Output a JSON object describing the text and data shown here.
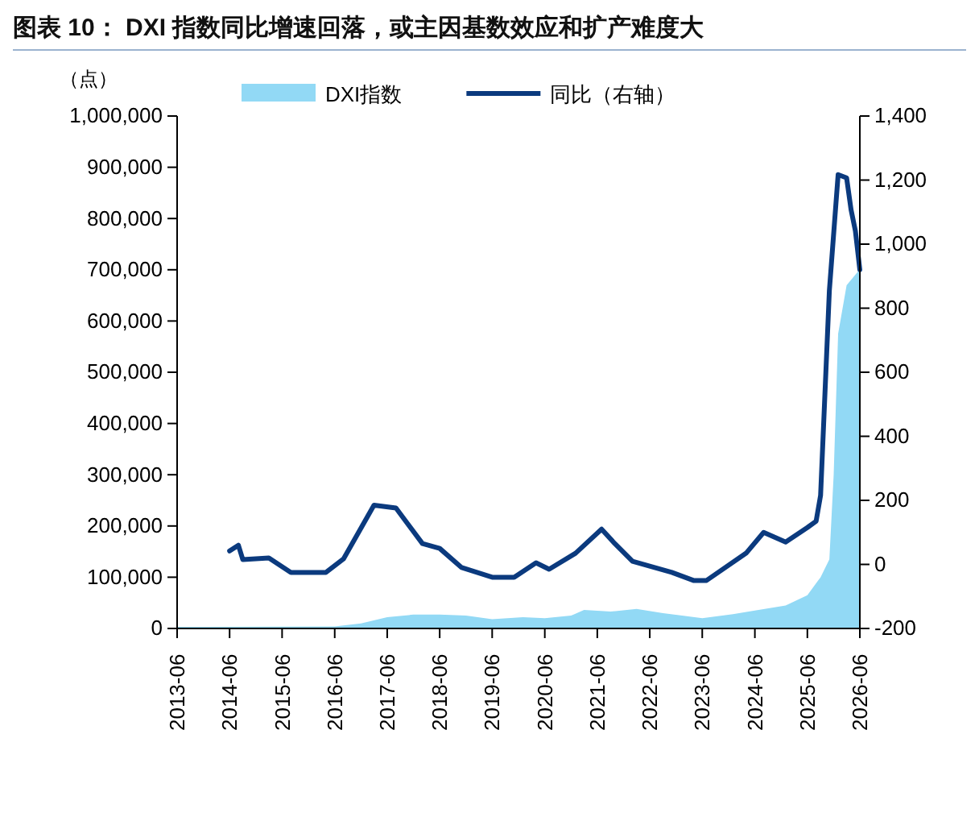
{
  "chart_data": {
    "type": "area",
    "title": "图表 10：  DXI 指数同比增速回落，或主因基数效应和扩产难度大",
    "ylabel": "（点）",
    "legend": "top",
    "xlim": [
      "2013-06",
      "2026-06"
    ],
    "xticks": [
      {
        "value": "2013-06",
        "label": "2013-06"
      },
      {
        "value": "2014-06",
        "label": "2014-06"
      },
      {
        "value": "2015-06",
        "label": "2015-06"
      },
      {
        "value": "2016-06",
        "label": "2016-06"
      },
      {
        "value": "2017-06",
        "label": "2017-06"
      },
      {
        "value": "2018-06",
        "label": "2018-06"
      },
      {
        "value": "2019-06",
        "label": "2019-06"
      },
      {
        "value": "2020-06",
        "label": "2020-06"
      },
      {
        "value": "2021-06",
        "label": "2021-06"
      },
      {
        "value": "2022-06",
        "label": "2022-06"
      },
      {
        "value": "2023-06",
        "label": "2023-06"
      },
      {
        "value": "2024-06",
        "label": "2024-06"
      },
      {
        "value": "2025-06",
        "label": "2025-06"
      },
      {
        "value": "2026-06",
        "label": "2026-06"
      }
    ],
    "ylim": [
      0,
      1000000
    ],
    "yticks": [
      {
        "value": 0,
        "label": "0"
      },
      {
        "value": 100000,
        "label": "100,000"
      },
      {
        "value": 200000,
        "label": "200,000"
      },
      {
        "value": 300000,
        "label": "300,000"
      },
      {
        "value": 400000,
        "label": "400,000"
      },
      {
        "value": 500000,
        "label": "500,000"
      },
      {
        "value": 600000,
        "label": "600,000"
      },
      {
        "value": 700000,
        "label": "700,000"
      },
      {
        "value": 800000,
        "label": "800,000"
      },
      {
        "value": 900000,
        "label": "900,000"
      },
      {
        "value": 1000000,
        "label": "1,000,000"
      }
    ],
    "y2lim": [
      -200,
      1400
    ],
    "y2ticks": [
      -200,
      0,
      200,
      400,
      600,
      800,
      {
        "value": 1000,
        "label": "1,000"
      },
      {
        "value": 1200,
        "label": "1,200"
      },
      {
        "value": 1400,
        "label": "1,400"
      }
    ],
    "series": [
      {
        "name": "DXI指数",
        "color": "#92d9f5",
        "x": [
          "2013-06",
          "2016-06",
          "2016-12",
          "2017-06",
          "2017-12",
          "2018-06",
          "2018-12",
          "2019-06",
          "2020-01",
          "2020-06",
          "2020-12",
          "2021-03",
          "2021-09",
          "2022-03",
          "2022-09",
          "2023-06",
          "2024-01",
          "2024-06",
          "2025-01",
          "2025-06",
          "2025-09",
          "2025-11",
          "2025-12",
          "2026-01",
          "2026-03",
          "2026-06"
        ],
        "values": [
          3000,
          4000,
          10000,
          22000,
          27000,
          27000,
          25000,
          18000,
          22000,
          20000,
          25000,
          36000,
          33000,
          38000,
          30000,
          20000,
          28000,
          35000,
          45000,
          65000,
          100000,
          135000,
          300000,
          575000,
          670000,
          701000
        ]
      },
      {
        "name": "同比（右轴）",
        "type": "line",
        "axis": "y2",
        "color": "#0b3a7e",
        "x": [
          "2014-06",
          "2014-08",
          "2014-09",
          "2015-03",
          "2015-08",
          "2016-04",
          "2016-08",
          "2017-03",
          "2017-08",
          "2018-02",
          "2018-06",
          "2018-11",
          "2019-06",
          "2019-11",
          "2020-04",
          "2020-07",
          "2021-01",
          "2021-07",
          "2021-10",
          "2022-02",
          "2022-11",
          "2023-04",
          "2023-07",
          "2024-04",
          "2024-08",
          "2025-01",
          "2025-06",
          "2025-08",
          "2025-09",
          "2025-11",
          "2026-01",
          "2026-03",
          "2026-04",
          "2026-05",
          "2026-06"
        ],
        "values": [
          42,
          60,
          15,
          20,
          -25,
          -25,
          17,
          185,
          176,
          65,
          50,
          -10,
          -40,
          -40,
          5,
          -15,
          35,
          110,
          65,
          10,
          -25,
          -50,
          -50,
          35,
          100,
          70,
          115,
          135,
          216,
          855,
          1217,
          1207,
          1107,
          1041,
          920
        ]
      }
    ]
  }
}
